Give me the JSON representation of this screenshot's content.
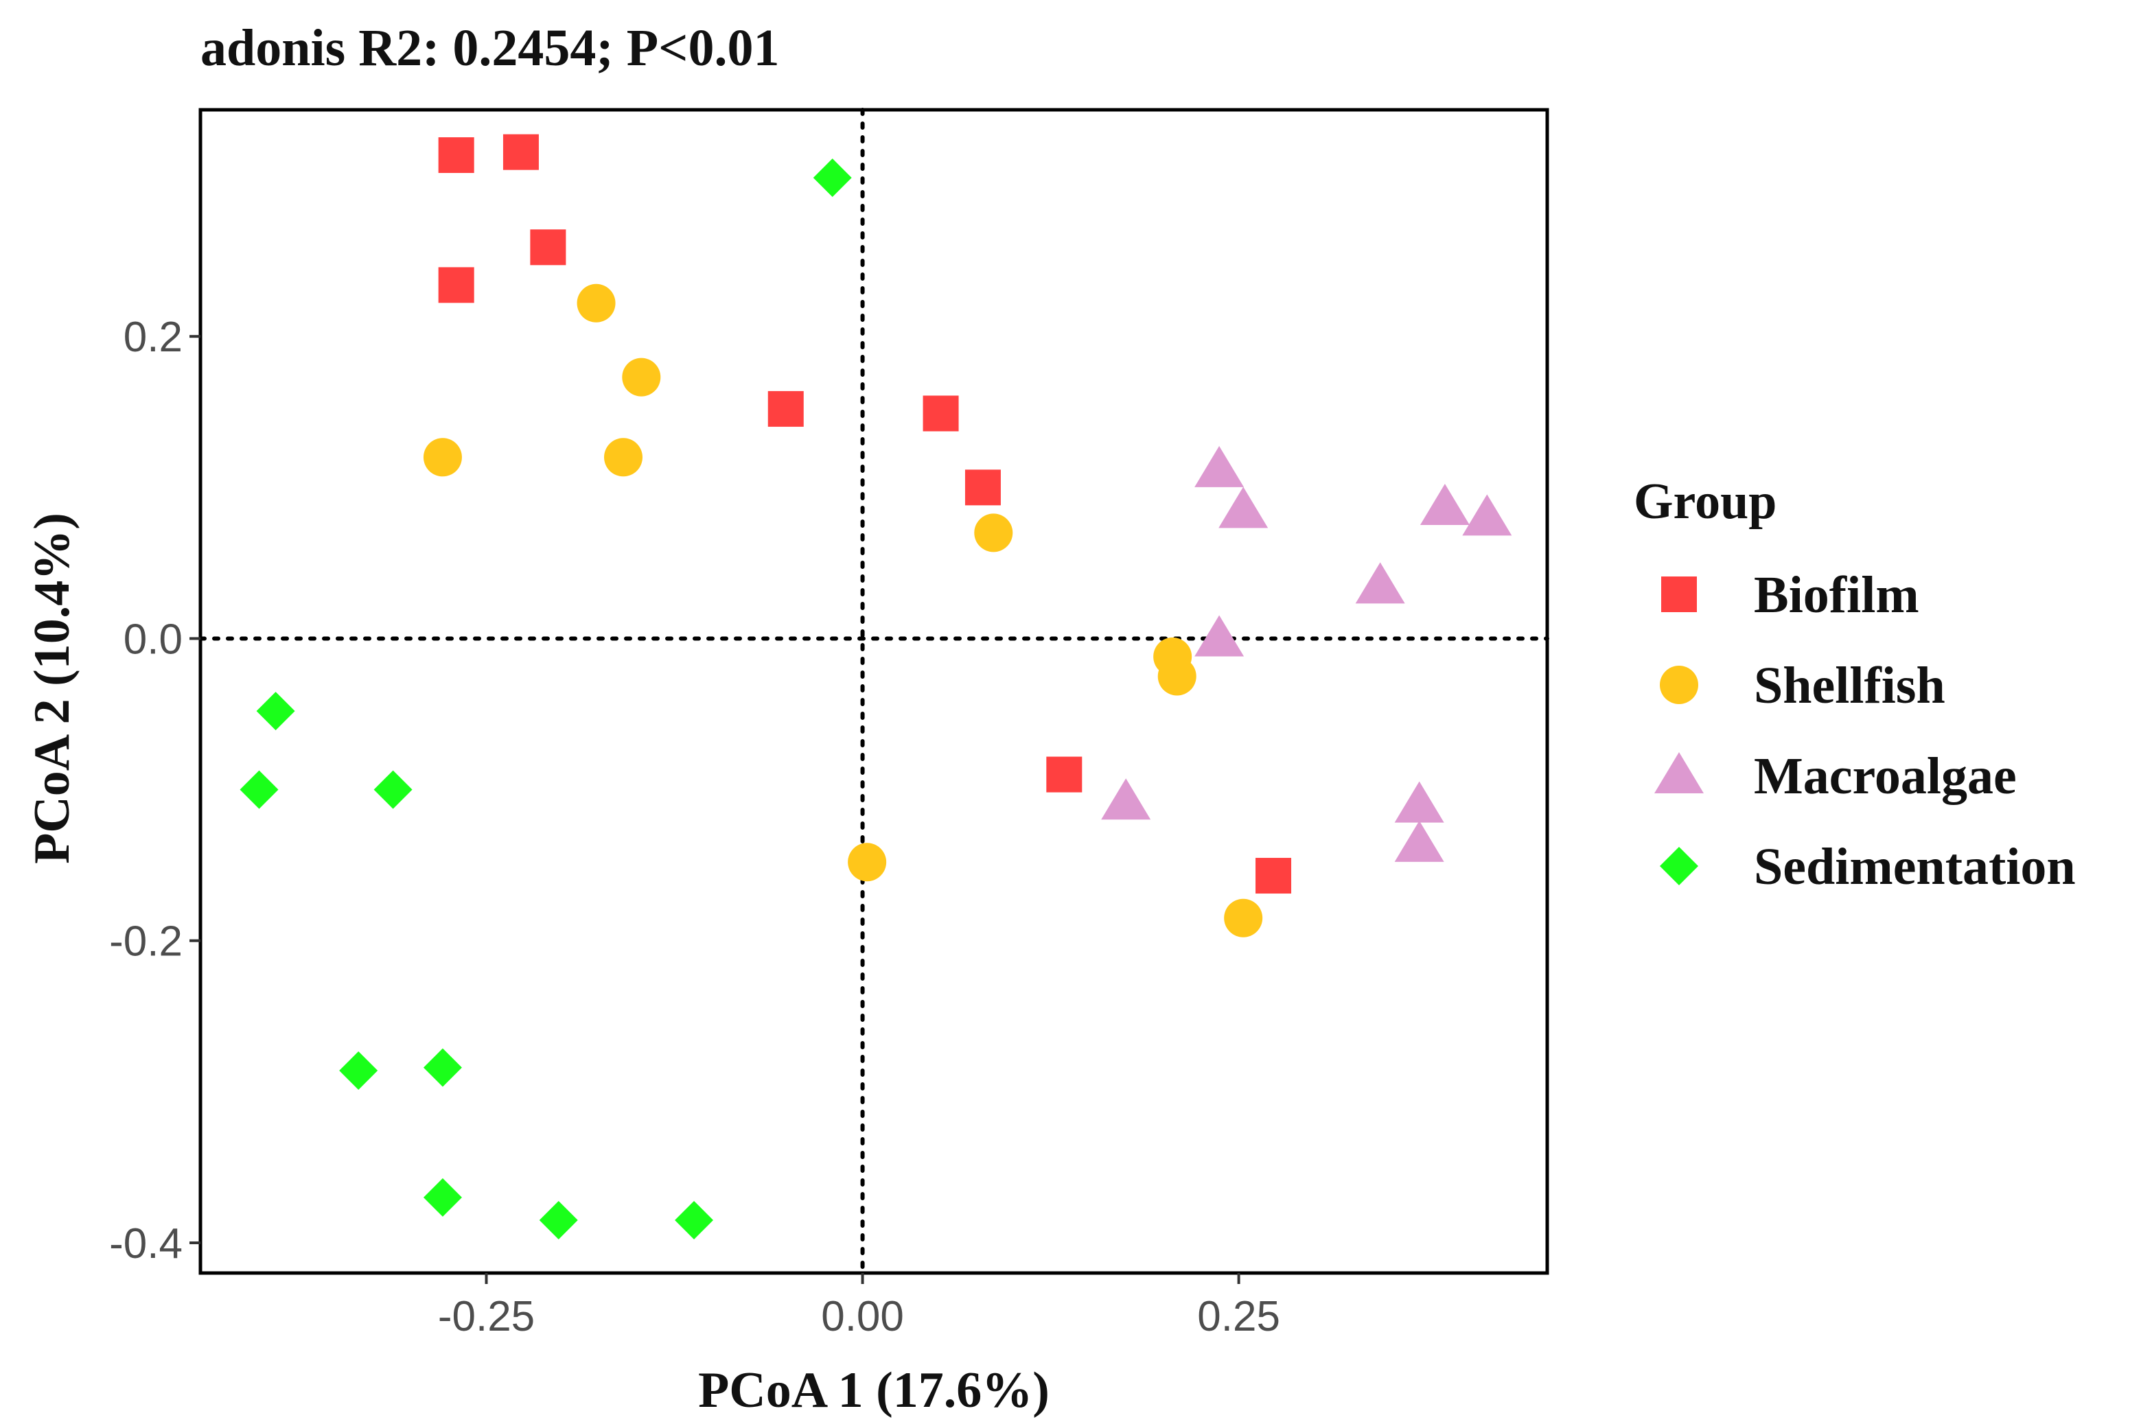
{
  "chart_data": {
    "type": "scatter",
    "title": "adonis R2: 0.2454; P<0.01",
    "xlabel": "PCoA 1 (17.6%)",
    "ylabel": "PCoA 2 (10.4%)",
    "xlim": [
      -0.44,
      0.455
    ],
    "ylim": [
      -0.42,
      0.35
    ],
    "xticks": [
      -0.25,
      0.0,
      0.25
    ],
    "xtick_labels": [
      "-0.25",
      "0.00",
      "0.25"
    ],
    "yticks": [
      0.2,
      0.0,
      -0.2,
      -0.4
    ],
    "ytick_labels": [
      "0.2",
      "0.0",
      "-0.2",
      "-0.4"
    ],
    "reference_lines": {
      "x": 0.0,
      "y": 0.0,
      "style": "dotted"
    },
    "grid": false,
    "legend": {
      "title": "Group",
      "placement": "right"
    },
    "series": [
      {
        "name": "Biofilm",
        "shape": "square",
        "color": "#ff4040",
        "points": [
          [
            -0.27,
            0.32
          ],
          [
            -0.227,
            0.322
          ],
          [
            -0.209,
            0.259
          ],
          [
            -0.27,
            0.234
          ],
          [
            -0.051,
            0.152
          ],
          [
            0.052,
            0.149
          ],
          [
            0.08,
            0.1
          ],
          [
            0.134,
            -0.09
          ],
          [
            0.273,
            -0.157
          ]
        ]
      },
      {
        "name": "Shellfish",
        "shape": "circle",
        "color": "#ffc61a",
        "points": [
          [
            -0.177,
            0.222
          ],
          [
            -0.147,
            0.173
          ],
          [
            -0.279,
            0.12
          ],
          [
            -0.159,
            0.12
          ],
          [
            0.087,
            0.07
          ],
          [
            0.206,
            -0.012
          ],
          [
            0.209,
            -0.025
          ],
          [
            0.003,
            -0.148
          ],
          [
            0.253,
            -0.185
          ]
        ]
      },
      {
        "name": "Macroalgae",
        "shape": "triangle",
        "color": "#dd99d0",
        "points": [
          [
            0.237,
            0.112
          ],
          [
            0.253,
            0.085
          ],
          [
            0.387,
            0.087
          ],
          [
            0.415,
            0.08
          ],
          [
            0.344,
            0.035
          ],
          [
            0.237,
            0.0
          ],
          [
            0.175,
            -0.108
          ],
          [
            0.37,
            -0.11
          ],
          [
            0.37,
            -0.136
          ]
        ]
      },
      {
        "name": "Sedimentation",
        "shape": "diamond",
        "color": "#1aff1a",
        "points": [
          [
            -0.02,
            0.305
          ],
          [
            -0.39,
            -0.048
          ],
          [
            -0.401,
            -0.1
          ],
          [
            -0.312,
            -0.1
          ],
          [
            -0.335,
            -0.286
          ],
          [
            -0.279,
            -0.284
          ],
          [
            -0.279,
            -0.37
          ],
          [
            -0.202,
            -0.385
          ],
          [
            -0.112,
            -0.385
          ]
        ]
      }
    ]
  }
}
